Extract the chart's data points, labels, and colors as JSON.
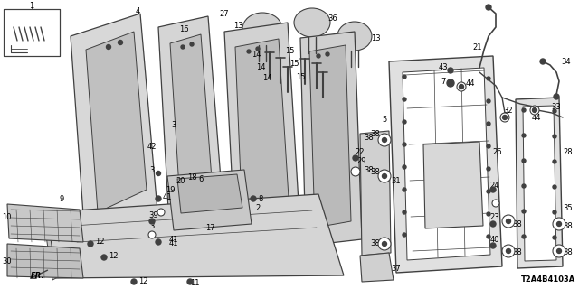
{
  "diagram_code": "T2A4B4103A",
  "bg_color": "#ffffff",
  "line_color": "#404040",
  "text_color": "#000000",
  "fig_width": 6.4,
  "fig_height": 3.2,
  "dpi": 100
}
